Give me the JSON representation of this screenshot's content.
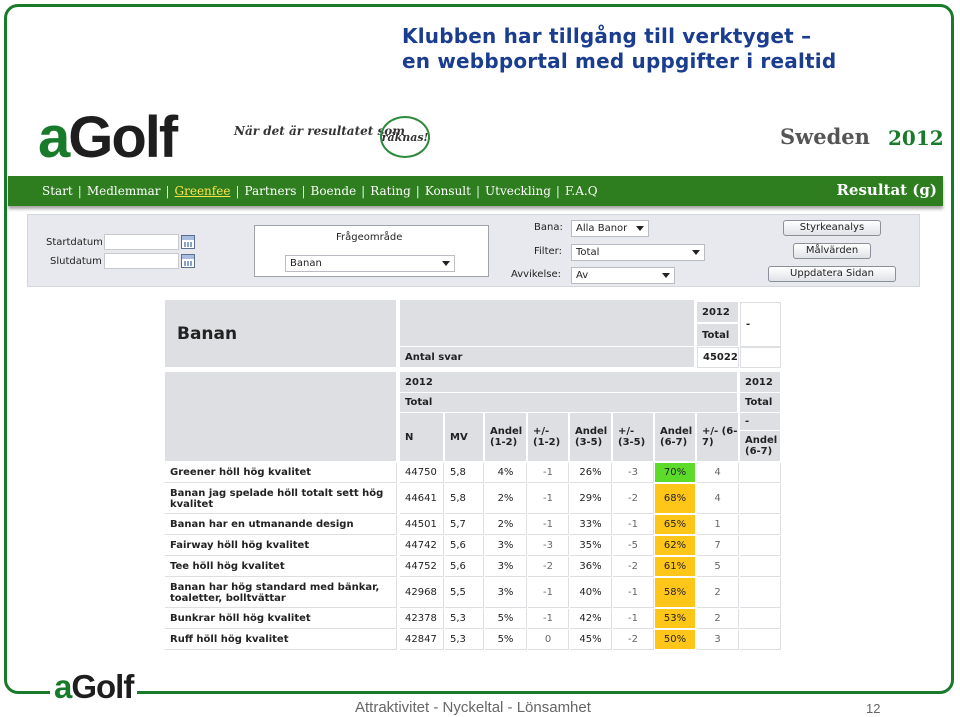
{
  "slide": {
    "title_line1": "Klubben har tillgång till verktyget –",
    "title_line2": "en webbportal med uppgifter i realtid",
    "footer_text": "Attraktivitet - Nyckeltal - Lönsamhet",
    "page_number": "12",
    "footer_logo_a": "a",
    "footer_logo_rest": "Golf"
  },
  "header": {
    "logo_a": "a",
    "logo_rest": "Golf",
    "tagline": "När det är resultatet som",
    "tagline_circle": "räknas!",
    "country": "Sweden",
    "year": "2012"
  },
  "nav": {
    "items": [
      "Start",
      "Medlemmar",
      "Greenfee",
      "Partners",
      "Boende",
      "Rating",
      "Konsult",
      "Utveckling",
      "F.A.Q"
    ],
    "active": "Greenfee",
    "right_label": "Resultat (g)"
  },
  "filters": {
    "startdatum_label": "Startdatum",
    "slutdatum_label": "Slutdatum",
    "fragoomrade_label": "Frågeområde",
    "fragoomrade_value": "Banan",
    "bana_label": "Bana:",
    "bana_value": "Alla Banor",
    "filter_label": "Filter:",
    "filter_value": "Total",
    "avvikelse_label": "Avvikelse:",
    "avvikelse_value": "Av",
    "btn_styrkeanalys": "Styrkeanalys",
    "btn_malvarden": "Målvärden",
    "btn_uppdatera": "Uppdatera Sidan"
  },
  "table": {
    "section_title": "Banan",
    "top_year": "2012",
    "top_total": "Total",
    "top_dash": "-",
    "antal_svar_label": "Antal svar",
    "antal_svar_value": "45022",
    "col_year": "2012",
    "col_total": "Total",
    "right_year": "2012",
    "right_total": "Total",
    "right_dash": "-",
    "right_andel": "Andel (6-7)",
    "columns": [
      "N",
      "MV",
      "Andel (1-2)",
      "+/- (1-2)",
      "Andel (3-5)",
      "+/- (3-5)",
      "Andel (6-7)",
      "+/- (6-7)"
    ],
    "rows": [
      {
        "label": "Greener höll hög kvalitet",
        "n": "44750",
        "mv": "5,8",
        "a12": "4%",
        "d12": "-1",
        "a35": "26%",
        "d35": "-3",
        "a67": "70%",
        "d67": "4",
        "level": "green"
      },
      {
        "label": "Banan jag spelade höll totalt sett hög kvalitet",
        "n": "44641",
        "mv": "5,8",
        "a12": "2%",
        "d12": "-1",
        "a35": "29%",
        "d35": "-2",
        "a67": "68%",
        "d67": "4",
        "level": "yellow"
      },
      {
        "label": "Banan har en utmanande design",
        "n": "44501",
        "mv": "5,7",
        "a12": "2%",
        "d12": "-1",
        "a35": "33%",
        "d35": "-1",
        "a67": "65%",
        "d67": "1",
        "level": "yellow"
      },
      {
        "label": "Fairway höll hög kvalitet",
        "n": "44742",
        "mv": "5,6",
        "a12": "3%",
        "d12": "-3",
        "a35": "35%",
        "d35": "-5",
        "a67": "62%",
        "d67": "7",
        "level": "yellow"
      },
      {
        "label": "Tee höll hög kvalitet",
        "n": "44752",
        "mv": "5,6",
        "a12": "3%",
        "d12": "-2",
        "a35": "36%",
        "d35": "-2",
        "a67": "61%",
        "d67": "5",
        "level": "yellow"
      },
      {
        "label": "Banan har hög standard med bänkar, toaletter, bolltvättar",
        "n": "42968",
        "mv": "5,5",
        "a12": "3%",
        "d12": "-1",
        "a35": "40%",
        "d35": "-1",
        "a67": "58%",
        "d67": "2",
        "level": "yellow"
      },
      {
        "label": "Bunkrar höll hög kvalitet",
        "n": "42378",
        "mv": "5,3",
        "a12": "5%",
        "d12": "-1",
        "a35": "42%",
        "d35": "-1",
        "a67": "53%",
        "d67": "2",
        "level": "yellow"
      },
      {
        "label": "Ruff höll hög kvalitet",
        "n": "42847",
        "mv": "5,3",
        "a12": "5%",
        "d12": "0",
        "a35": "45%",
        "d35": "-2",
        "a67": "50%",
        "d67": "3",
        "level": "yellow"
      }
    ]
  },
  "colors": {
    "brand_green": "#1a7a2c",
    "title_blue": "#1a3d8f",
    "highlight_green": "#5ddb2b",
    "highlight_yellow": "#ffc61a"
  }
}
